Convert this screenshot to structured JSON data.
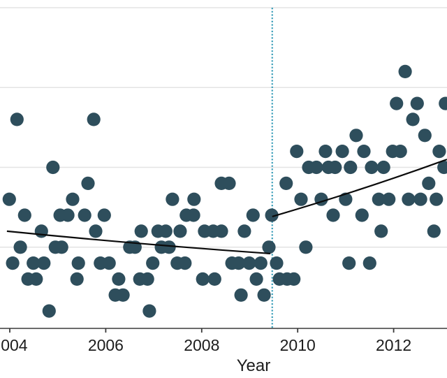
{
  "chart_data": {
    "type": "scatter",
    "title": "",
    "xlabel": "Year",
    "ylabel": "",
    "x_ticks": [
      2004,
      2006,
      2008,
      2010,
      2012
    ],
    "xlim": [
      2003.8,
      2013.12
    ],
    "ylim": [
      0,
      20
    ],
    "grid": "horizontal gridlines at counts 5, 10, 15, 20",
    "vline_year": 2009.47,
    "points": [
      [
        2012.24,
        16
      ],
      [
        2012.06,
        14
      ],
      [
        2012.49,
        14
      ],
      [
        2013.08,
        14
      ],
      [
        2004.15,
        13
      ],
      [
        2005.75,
        13
      ],
      [
        2012.4,
        13
      ],
      [
        2011.22,
        12
      ],
      [
        2012.65,
        12
      ],
      [
        2009.98,
        11
      ],
      [
        2010.58,
        11
      ],
      [
        2010.93,
        11
      ],
      [
        2011.38,
        11
      ],
      [
        2011.98,
        11
      ],
      [
        2012.14,
        11
      ],
      [
        2012.95,
        11
      ],
      [
        2004.9,
        10
      ],
      [
        2010.23,
        10
      ],
      [
        2010.39,
        10
      ],
      [
        2010.64,
        10
      ],
      [
        2010.78,
        10
      ],
      [
        2011.1,
        10
      ],
      [
        2011.54,
        10
      ],
      [
        2011.79,
        10
      ],
      [
        2013.05,
        10
      ],
      [
        2005.63,
        9
      ],
      [
        2008.41,
        9
      ],
      [
        2008.57,
        9
      ],
      [
        2009.76,
        9
      ],
      [
        2012.73,
        9
      ],
      [
        2003.99,
        8
      ],
      [
        2005.31,
        8
      ],
      [
        2007.39,
        8
      ],
      [
        2007.84,
        8
      ],
      [
        2010.07,
        8
      ],
      [
        2010.49,
        8
      ],
      [
        2011.0,
        8
      ],
      [
        2011.69,
        8
      ],
      [
        2011.9,
        8
      ],
      [
        2012.31,
        8
      ],
      [
        2012.56,
        8
      ],
      [
        2012.89,
        8
      ],
      [
        2004.31,
        7
      ],
      [
        2005.05,
        7
      ],
      [
        2005.21,
        7
      ],
      [
        2005.56,
        7
      ],
      [
        2005.97,
        7
      ],
      [
        2007.68,
        7
      ],
      [
        2007.83,
        7
      ],
      [
        2009.07,
        7
      ],
      [
        2009.46,
        7
      ],
      [
        2010.74,
        7
      ],
      [
        2011.34,
        7
      ],
      [
        2004.66,
        6
      ],
      [
        2005.79,
        6
      ],
      [
        2006.74,
        6
      ],
      [
        2007.09,
        6
      ],
      [
        2007.25,
        6
      ],
      [
        2007.55,
        6
      ],
      [
        2008.06,
        6
      ],
      [
        2008.24,
        6
      ],
      [
        2008.41,
        6
      ],
      [
        2008.89,
        6
      ],
      [
        2011.74,
        6
      ],
      [
        2012.84,
        6
      ],
      [
        2004.22,
        5
      ],
      [
        2004.95,
        5
      ],
      [
        2005.08,
        5
      ],
      [
        2006.5,
        5
      ],
      [
        2006.61,
        5
      ],
      [
        2007.16,
        5
      ],
      [
        2007.32,
        5
      ],
      [
        2009.4,
        5
      ],
      [
        2010.17,
        5
      ],
      [
        2004.06,
        4
      ],
      [
        2004.49,
        4
      ],
      [
        2004.71,
        4
      ],
      [
        2005.43,
        4
      ],
      [
        2005.89,
        4
      ],
      [
        2006.07,
        4
      ],
      [
        2006.98,
        4
      ],
      [
        2007.49,
        4
      ],
      [
        2007.65,
        4
      ],
      [
        2008.63,
        4
      ],
      [
        2008.77,
        4
      ],
      [
        2008.99,
        4
      ],
      [
        2009.23,
        4
      ],
      [
        2009.56,
        4
      ],
      [
        2011.07,
        4
      ],
      [
        2011.5,
        4
      ],
      [
        2004.38,
        3
      ],
      [
        2004.55,
        3
      ],
      [
        2005.4,
        3
      ],
      [
        2006.27,
        3
      ],
      [
        2006.71,
        3
      ],
      [
        2006.87,
        3
      ],
      [
        2008.02,
        3
      ],
      [
        2008.27,
        3
      ],
      [
        2009.14,
        3
      ],
      [
        2009.62,
        3
      ],
      [
        2009.78,
        3
      ],
      [
        2009.92,
        3
      ],
      [
        2006.2,
        2
      ],
      [
        2006.36,
        2
      ],
      [
        2008.82,
        2
      ],
      [
        2009.3,
        2
      ],
      [
        2004.82,
        1
      ],
      [
        2006.91,
        1
      ]
    ],
    "trend_pre": {
      "name": "pre-period trend line",
      "points": [
        [
          2003.94,
          6.0
        ],
        [
          2006.71,
          5.17
        ],
        [
          2009.43,
          4.6
        ]
      ]
    },
    "trend_post": {
      "name": "post-period trend line",
      "points": [
        [
          2009.47,
          6.92
        ],
        [
          2011.36,
          8.58
        ],
        [
          2013.11,
          10.5
        ]
      ]
    },
    "colors": {
      "dot": "#2e4e5c",
      "trend": "#0a0a0a",
      "vline": "#43a2bc",
      "grid": "#e3e3e3",
      "axis": "#3a3a3a",
      "text": "#1c1c1c"
    }
  }
}
